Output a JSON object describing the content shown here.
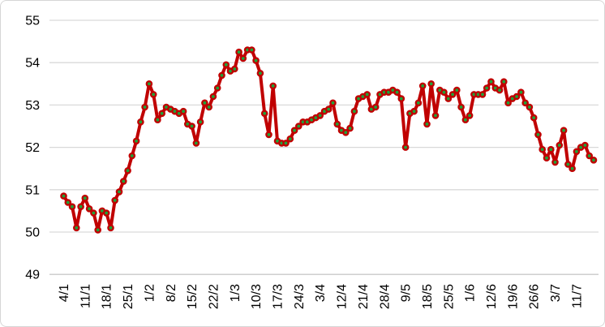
{
  "chart_data": {
    "type": "line",
    "title": "",
    "xlabel": "",
    "ylabel": "",
    "ylim": [
      49,
      55
    ],
    "y_ticks": [
      49,
      50,
      51,
      52,
      53,
      54,
      55
    ],
    "grid": true,
    "legend": "none",
    "x_tick_labels": [
      "4/1",
      "11/1",
      "18/1",
      "25/1",
      "1/2",
      "8/2",
      "15/2",
      "22/2",
      "1/3",
      "10/3",
      "17/3",
      "24/3",
      "3/4",
      "12/4",
      "21/4",
      "28/4",
      "9/5",
      "18/5",
      "25/5",
      "1/6",
      "12/6",
      "19/6",
      "26/6",
      "3/7",
      "11/7"
    ],
    "points_per_tick": 5,
    "values": [
      50.85,
      50.7,
      50.6,
      50.1,
      50.6,
      50.8,
      50.55,
      50.45,
      50.05,
      50.5,
      50.45,
      50.1,
      50.75,
      50.95,
      51.2,
      51.45,
      51.8,
      52.15,
      52.6,
      52.95,
      53.5,
      53.25,
      52.65,
      52.8,
      52.95,
      52.9,
      52.85,
      52.8,
      52.85,
      52.55,
      52.5,
      52.1,
      52.6,
      53.05,
      52.95,
      53.2,
      53.4,
      53.7,
      53.95,
      53.8,
      53.85,
      54.25,
      54.1,
      54.3,
      54.3,
      54.05,
      53.75,
      52.8,
      52.3,
      53.45,
      52.15,
      52.1,
      52.1,
      52.2,
      52.4,
      52.5,
      52.6,
      52.6,
      52.65,
      52.7,
      52.75,
      52.85,
      52.9,
      53.05,
      52.55,
      52.4,
      52.35,
      52.45,
      52.85,
      53.15,
      53.2,
      53.25,
      52.9,
      52.95,
      53.25,
      53.3,
      53.3,
      53.35,
      53.3,
      53.15,
      52.0,
      52.8,
      52.85,
      53.05,
      53.45,
      52.55,
      53.5,
      52.75,
      53.35,
      53.3,
      53.15,
      53.25,
      53.35,
      52.95,
      52.65,
      52.75,
      53.25,
      53.25,
      53.25,
      53.4,
      53.55,
      53.4,
      53.35,
      53.55,
      53.05,
      53.15,
      53.2,
      53.3,
      53.05,
      52.95,
      52.7,
      52.3,
      51.95,
      51.75,
      51.95,
      51.65,
      52.05,
      52.4,
      51.6,
      51.5,
      51.9,
      52.0,
      52.05,
      51.8,
      51.7
    ],
    "line_color": "#c00000",
    "marker_fill": "#1fa23a",
    "marker_edge": "#c00000",
    "gridline_color": "#d9d9d9",
    "axis_line_color": "#c9c9c9",
    "text_color": "#000000",
    "frame_border_color": "#d6d6d6",
    "background": "#ffffff"
  }
}
